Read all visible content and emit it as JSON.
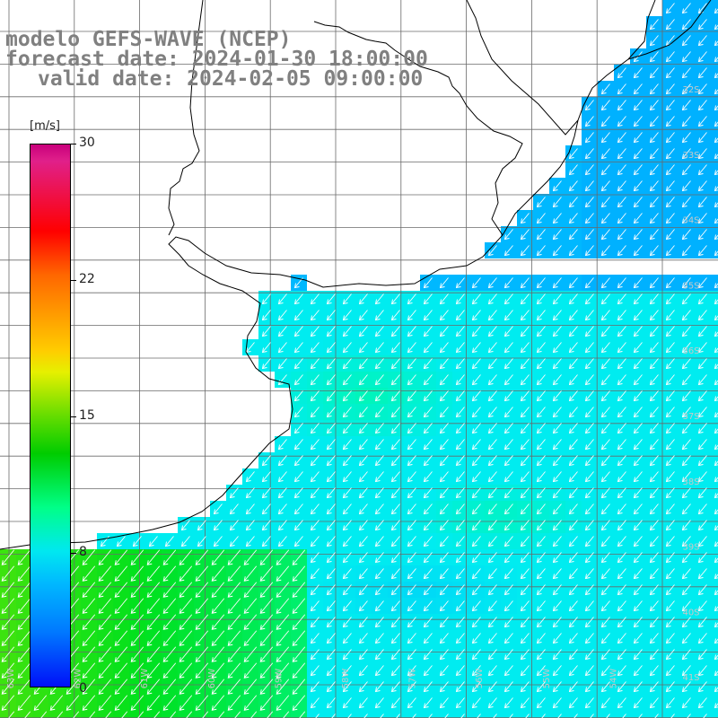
{
  "header": {
    "title": "modelo GEFS-WAVE (NCEP)",
    "forecast_date": "forecast date: 2024-01-30 18:00:00",
    "valid_date": "valid date: 2024-02-05 09:00:00"
  },
  "colorbar": {
    "unit": "[m/s]",
    "ticks": [
      "30",
      "22",
      "15",
      "8",
      "0"
    ]
  },
  "axes": {
    "lat_labels": [
      "32S",
      "33S",
      "34S",
      "35S",
      "36S",
      "37S",
      "38S",
      "39S",
      "40S",
      "41S"
    ],
    "lon_labels": [
      "63W",
      "62W",
      "61W",
      "60W",
      "59W",
      "58W",
      "57W",
      "56W",
      "55W",
      "54W"
    ]
  },
  "colors": {
    "land": "#ffffff",
    "coast": "#000000",
    "grid": "#6a6a6a",
    "arrow": "#ffffff",
    "header_text": "#808080"
  },
  "chart_data": {
    "type": "heatmap",
    "variable": "wind speed with wind direction arrows",
    "unit": "[m/s]",
    "color_scale_range": [
      0,
      30
    ],
    "color_scale_ticks": [
      0,
      8,
      15,
      22,
      30
    ],
    "arrow_direction": "toward the southwest",
    "speed_regions": [
      {
        "area": "coastal margin north of 34S",
        "speed_ms": 5
      },
      {
        "area": "open ocean 34S-39S",
        "speed_ms": 8
      },
      {
        "area": "area near 36S-37S off the coast",
        "speed_ms": 9.5
      },
      {
        "area": "southwest corner south of 39S",
        "speed_ms": 12
      },
      {
        "area": "area near 40S 58W",
        "speed_ms": 7
      }
    ]
  }
}
